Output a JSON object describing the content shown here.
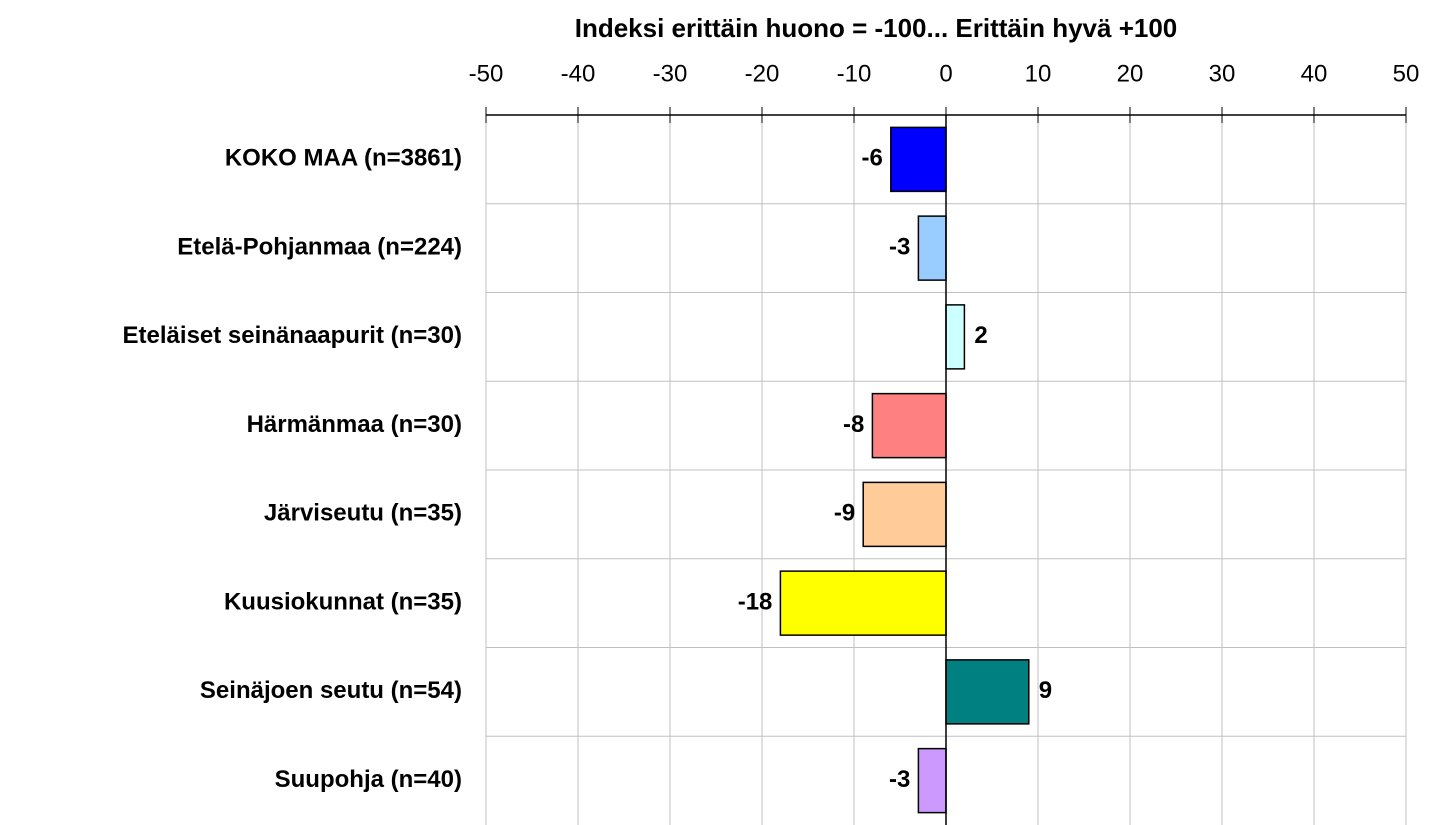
{
  "chart_data": {
    "type": "hbar",
    "xlabel": "Indeksi erittäin huono = -100... Erittäin hyvä +100",
    "categories": [
      "KOKO MAA (n=3861)",
      "Etelä-Pohjanmaa (n=224)",
      "Eteläiset seinänaapurit (n=30)",
      "Härmänmaa (n=30)",
      "Järviseutu (n=35)",
      "Kuusiokunnat (n=35)",
      "Seinäjoen seutu (n=54)",
      "Suupohja (n=40)"
    ],
    "values": [
      -6,
      -3,
      2,
      -8,
      -9,
      -18,
      9,
      -3
    ],
    "colors": [
      "#0000ff",
      "#99ccff",
      "#ccffff",
      "#ff8080",
      "#ffcc99",
      "#ffff00",
      "#008080",
      "#cc99ff"
    ],
    "xlim": [
      -50,
      50
    ],
    "xticks": [
      -50,
      -40,
      -30,
      -20,
      -10,
      0,
      10,
      20,
      30,
      40,
      50
    ],
    "grid": true
  }
}
